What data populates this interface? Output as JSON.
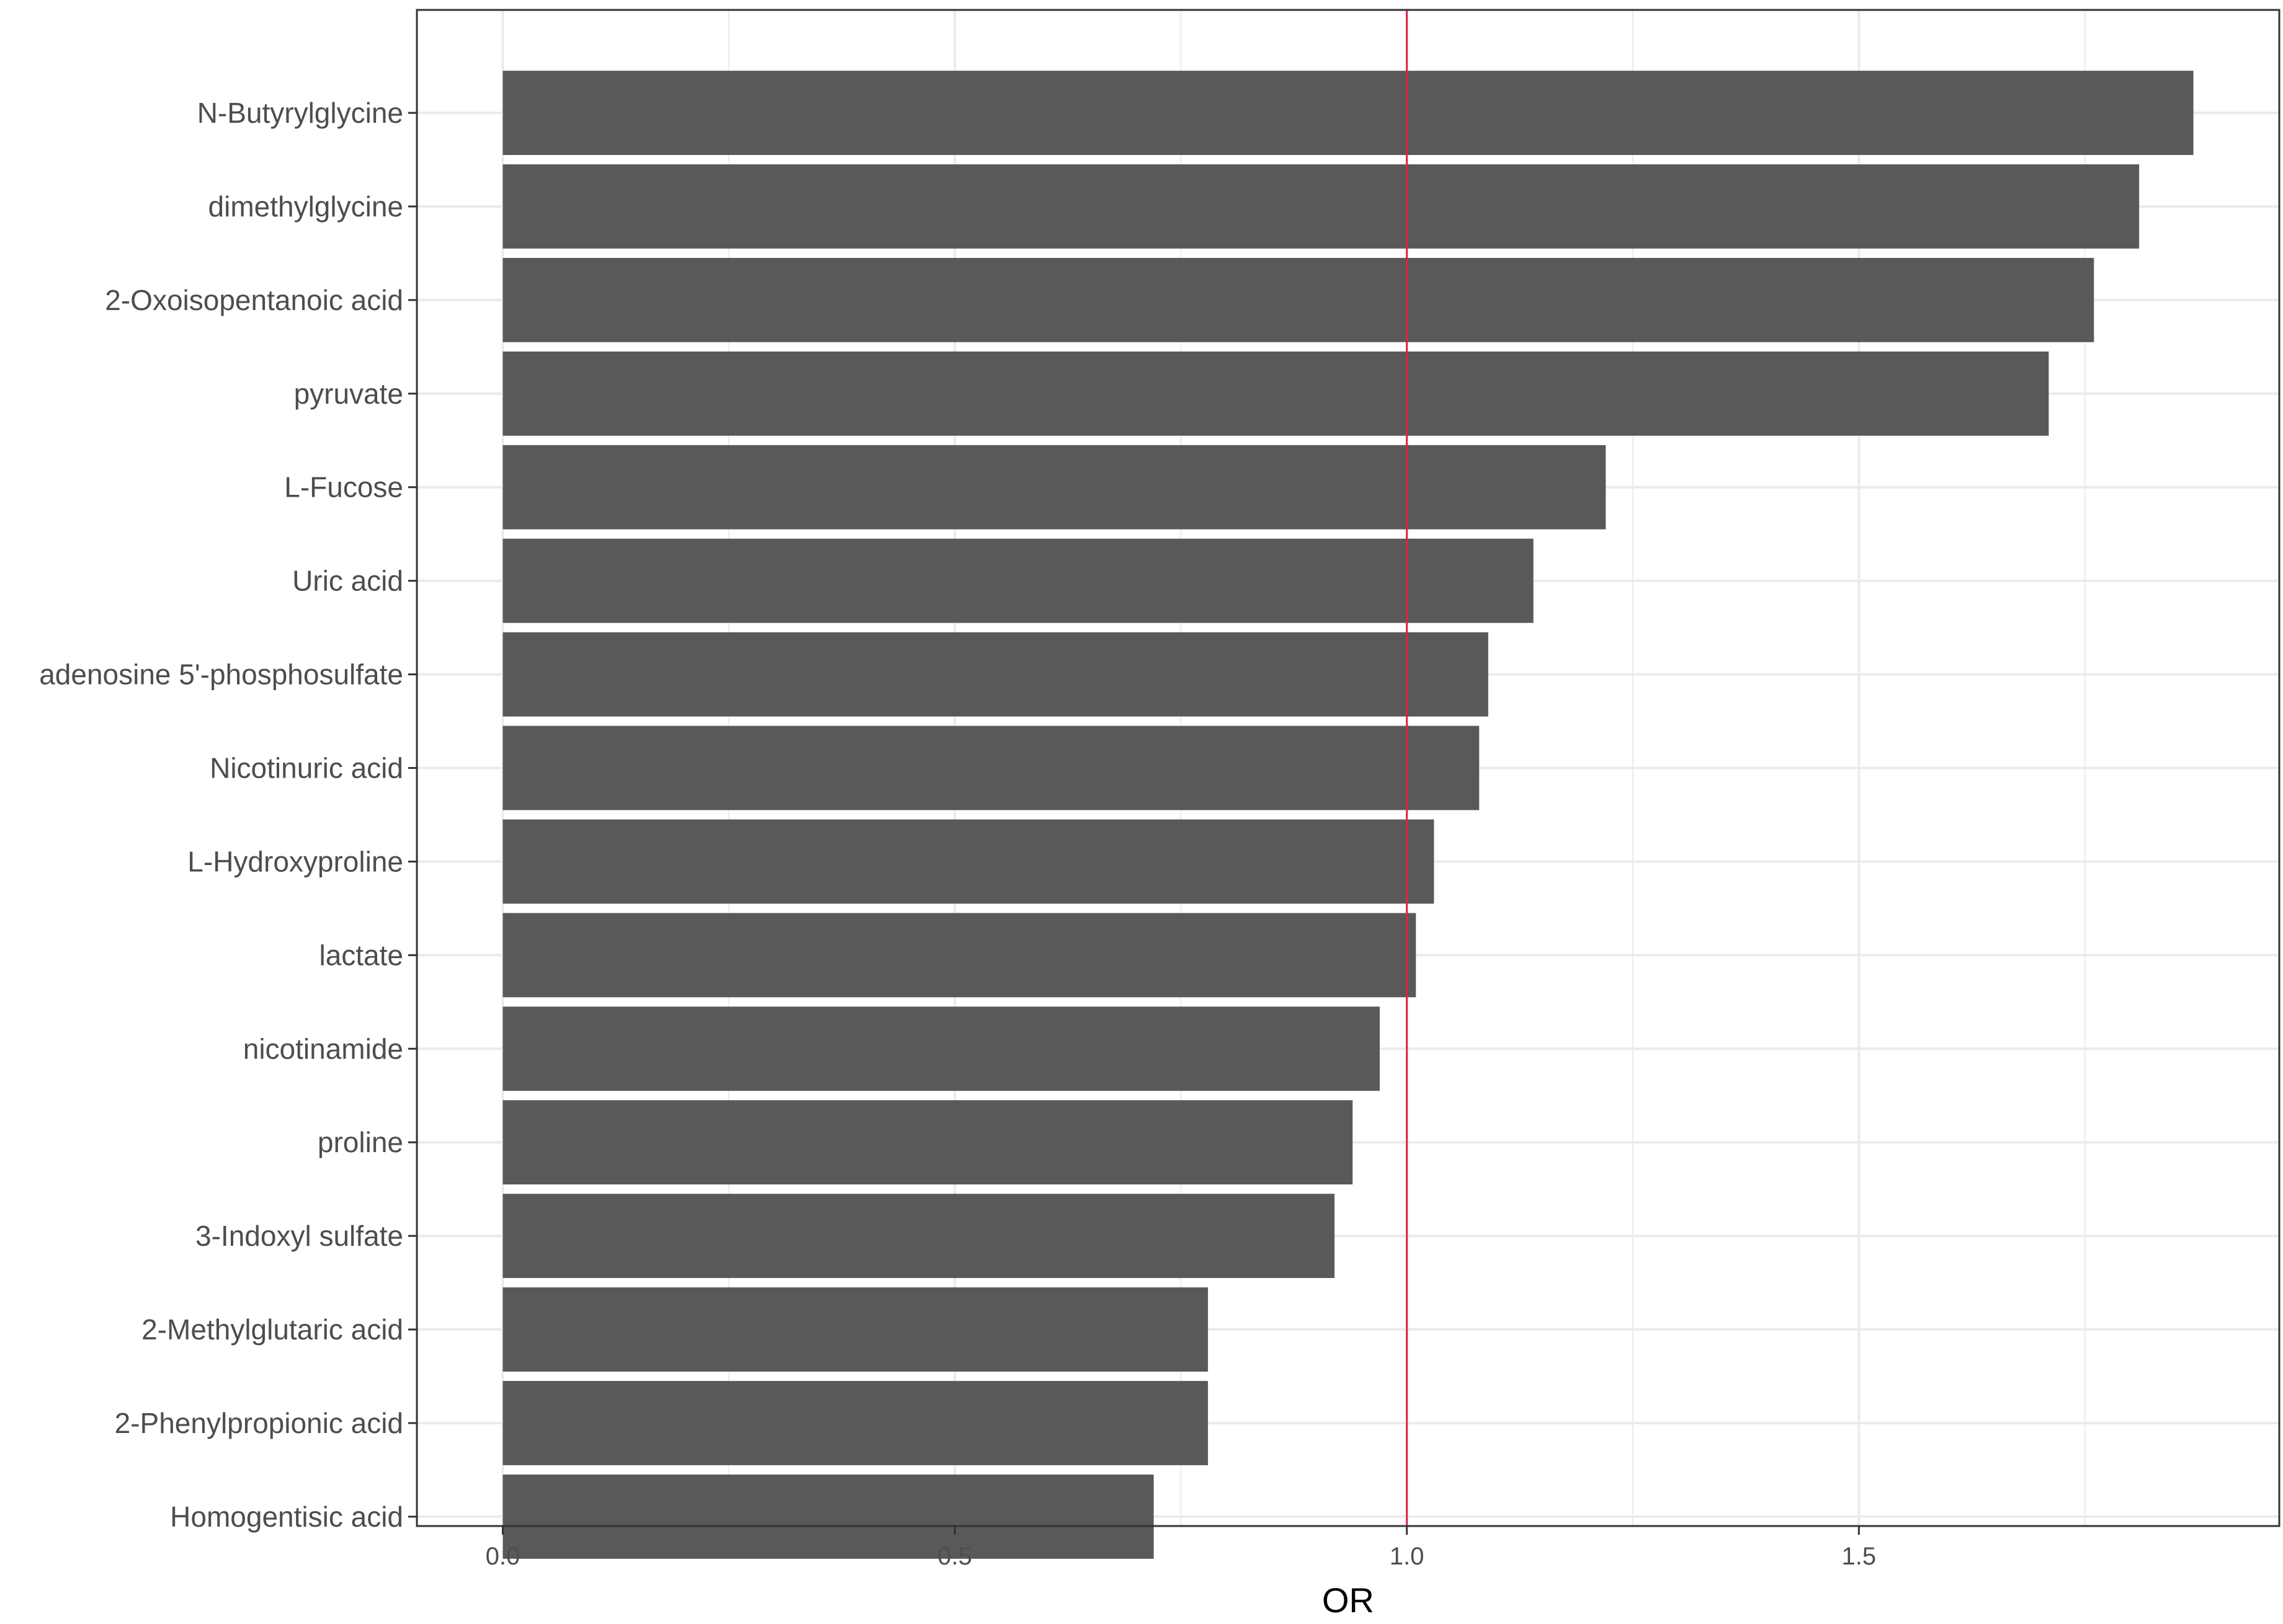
{
  "chart_data": {
    "type": "bar",
    "orientation": "horizontal",
    "categories": [
      "N-Butyrylglycine",
      "dimethylglycine",
      "2-Oxoisopentanoic acid",
      "pyruvate",
      "L-Fucose",
      "Uric acid",
      "adenosine 5'-phosphosulfate",
      "Nicotinuric acid",
      "L-Hydroxyproline",
      "lactate",
      "nicotinamide",
      "proline",
      "3-Indoxyl sulfate",
      "2-Methylglutaric acid",
      "2-Phenylpropionic acid",
      "Homogentisic acid"
    ],
    "values": [
      1.87,
      1.81,
      1.76,
      1.71,
      1.22,
      1.14,
      1.09,
      1.08,
      1.03,
      1.01,
      0.97,
      0.94,
      0.92,
      0.78,
      0.78,
      0.72
    ],
    "title": "",
    "xlabel": "OR",
    "ylabel": "",
    "xlim": [
      -0.095,
      1.965
    ],
    "xticks": [
      0.0,
      0.5,
      1.0,
      1.5
    ],
    "xtick_labels": [
      "0.0",
      "0.5",
      "1.0",
      "1.5"
    ],
    "reference_line": {
      "x": 1.0,
      "color": "#e0233d"
    },
    "bar_color": "#595959",
    "grid": true,
    "grid_color": "#ebebeb",
    "legend": "none"
  }
}
